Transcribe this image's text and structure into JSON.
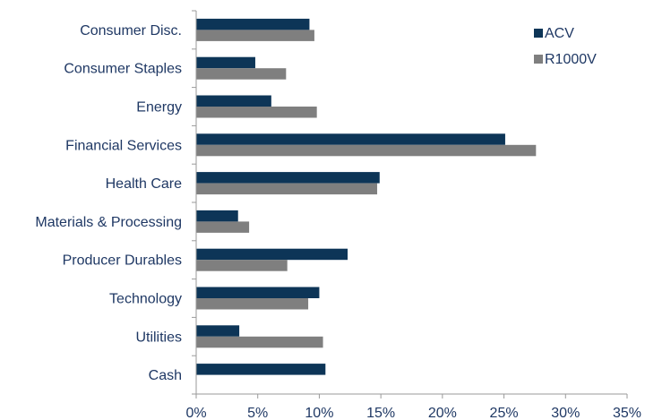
{
  "chart_data": {
    "type": "bar",
    "orientation": "horizontal",
    "categories": [
      "Consumer Disc.",
      "Consumer Staples",
      "Energy",
      "Financial Services",
      "Health Care",
      "Materials & Processing",
      "Producer Durables",
      "Technology",
      "Utilities",
      "Cash"
    ],
    "series": [
      {
        "name": "ACV",
        "color": "#0d3557",
        "values": [
          9.2,
          4.8,
          6.1,
          25.1,
          14.9,
          3.4,
          12.3,
          10.0,
          3.5,
          10.5
        ]
      },
      {
        "name": "R1000V",
        "color": "#7f7f7f",
        "values": [
          9.6,
          7.3,
          9.8,
          27.6,
          14.7,
          4.3,
          7.4,
          9.1,
          10.3,
          0
        ]
      }
    ],
    "xlim": [
      0,
      35
    ],
    "xticks": [
      "0%",
      "5%",
      "10%",
      "15%",
      "20%",
      "25%",
      "30%",
      "35%"
    ],
    "title": "",
    "xlabel": "",
    "ylabel": "",
    "grid": false,
    "legend": "top-right"
  }
}
